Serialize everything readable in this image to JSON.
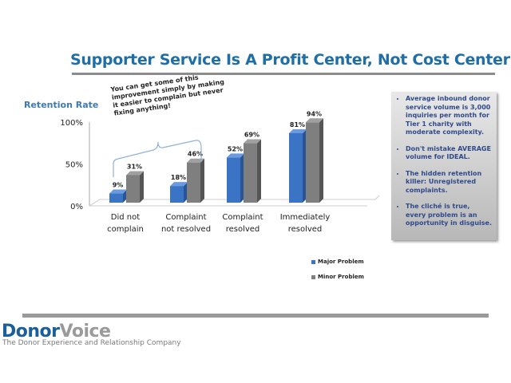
{
  "slide": {
    "title": "Supporter Service Is A Profit Center, Not Cost Center",
    "callout": "You can get some of this improvement simply by making it easier to complain but never fixing anything!",
    "sidebar_bullets": [
      "Average inbound donor service volume is 3,000 inquiries per month for Tier 1 charity with moderate complexity.",
      "Don't mistake AVERAGE volume for IDEAL.",
      "The hidden retention killer: Unregistered complaints.",
      "The cliché is true, every problem is an opportunity in disguise."
    ],
    "logo": {
      "part1": "Donor",
      "part2": "Voice",
      "tagline": "The Donor Experience and Relationship Company"
    }
  },
  "chart_data": {
    "type": "bar",
    "title": "",
    "ylabel": "Retention Rate",
    "xlabel": "",
    "ylim": [
      0,
      100
    ],
    "yticks": [
      "0%",
      "50%",
      "100%"
    ],
    "categories": [
      [
        "Did not",
        "complain"
      ],
      [
        "Complaint",
        "not resolved"
      ],
      [
        "Complaint",
        "resolved"
      ],
      [
        "Immediately",
        "resolved"
      ]
    ],
    "series": [
      {
        "name": "Major Problem",
        "color": "#3b74c4",
        "values": [
          9,
          18,
          52,
          81
        ],
        "labels": [
          "9%",
          "18%",
          "52%",
          "81%"
        ]
      },
      {
        "name": "Minor Problem",
        "color": "#7f7f7f",
        "values": [
          31,
          46,
          69,
          94
        ],
        "labels": [
          "31%",
          "46%",
          "69%",
          "94%"
        ]
      }
    ],
    "legend_position": "bottom-right",
    "grid": false
  }
}
